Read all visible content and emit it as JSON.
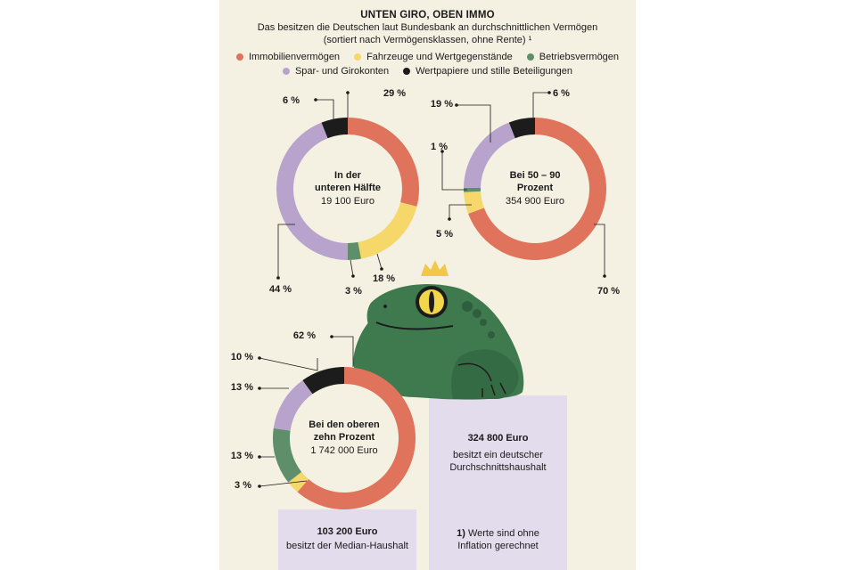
{
  "header": {
    "title": "UNTEN GIRO, OBEN IMMO",
    "subtitle_line1": "Das besitzen die Deutschen laut Bundesbank an durchschnittlichen Vermögen",
    "subtitle_line2": "(sortiert nach Vermögensklassen, ohne Rente) ¹"
  },
  "legend": [
    {
      "label": "Immobilienvermögen",
      "color": "#e0735c"
    },
    {
      "label": "Fahrzeuge und Wertgegenstände",
      "color": "#f5d76a"
    },
    {
      "label": "Betriebsvermögen",
      "color": "#5f8f6a"
    },
    {
      "label": "Spar- und Girokonten",
      "color": "#b8a3cc"
    },
    {
      "label": "Wertpapiere und stille Beteiligungen",
      "color": "#1c1c1c"
    }
  ],
  "chart_data": [
    {
      "type": "pie",
      "center_label_line1": "In der",
      "center_label_line2": "unteren Hälfte",
      "center_value": "19 100 Euro",
      "slices": [
        {
          "name": "Immobilienvermögen",
          "value": 29,
          "label": "29 %"
        },
        {
          "name": "Fahrzeuge und Wertgegenstände",
          "value": 18,
          "label": "18 %"
        },
        {
          "name": "Betriebsvermögen",
          "value": 3,
          "label": "3 %"
        },
        {
          "name": "Spar- und Girokonten",
          "value": 44,
          "label": "44 %"
        },
        {
          "name": "Wertpapiere und stille Beteiligungen",
          "value": 6,
          "label": "6 %"
        }
      ]
    },
    {
      "type": "pie",
      "center_label_line1": "Bei 50 – 90",
      "center_label_line2": "Prozent",
      "center_value": "354 900 Euro",
      "slices": [
        {
          "name": "Immobilienvermögen",
          "value": 70,
          "label": "70 %"
        },
        {
          "name": "Fahrzeuge und Wertgegenstände",
          "value": 5,
          "label": "5 %"
        },
        {
          "name": "Betriebsvermögen",
          "value": 1,
          "label": "1 %"
        },
        {
          "name": "Spar- und Girokonten",
          "value": 19,
          "label": "19 %"
        },
        {
          "name": "Wertpapiere und stille Beteiligungen",
          "value": 6,
          "label": "6 %"
        }
      ]
    },
    {
      "type": "pie",
      "center_label_line1": "Bei den oberen",
      "center_label_line2": "zehn Prozent",
      "center_value": "1 742 000 Euro",
      "slices": [
        {
          "name": "Immobilienvermögen",
          "value": 62,
          "label": "62 %"
        },
        {
          "name": "Fahrzeuge und Wertgegenstände",
          "value": 3,
          "label": "3 %"
        },
        {
          "name": "Betriebsvermögen",
          "value": 13,
          "label": "13 %"
        },
        {
          "name": "Spar- und Girokonten",
          "value": 13,
          "label": "13 %"
        },
        {
          "name": "Wertpapiere und stille Beteiligungen",
          "value": 10,
          "label": "10 %"
        }
      ]
    }
  ],
  "boxes": {
    "median_value": "103 200 Euro",
    "median_text": "besitzt der Median-Haushalt",
    "average_value": "324 800 Euro",
    "average_text_line1": "besitzt ein deutscher",
    "average_text_line2": "Durchschnittshaushalt",
    "footnote_marker": "1)",
    "footnote_line1": "Werte sind ohne",
    "footnote_line2": "Inflation gerechnet"
  },
  "illustration": {
    "icon": "frog-with-crown-icon",
    "frog_color": "#3f7a4f",
    "crown_color": "#f2c84b"
  }
}
